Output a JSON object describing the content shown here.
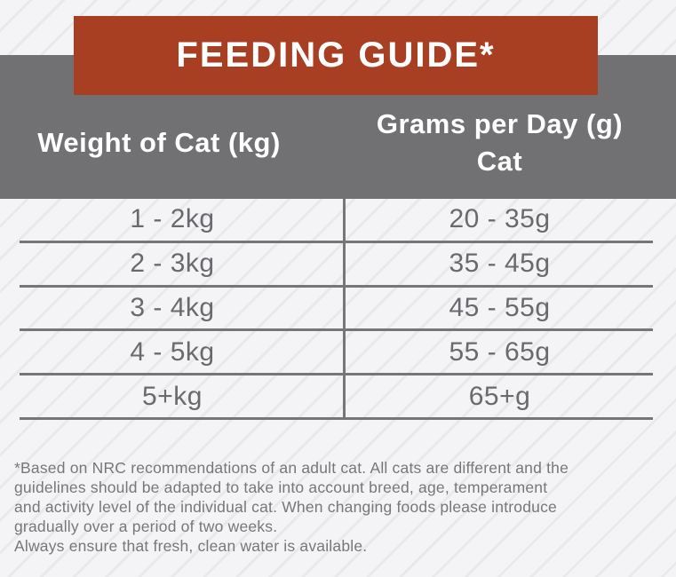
{
  "banner": {
    "title": "FEEDING GUIDE*"
  },
  "table": {
    "headers": {
      "col1": "Weight of Cat (kg)",
      "col2_line1": "Grams per Day (g)",
      "col2_line2": "Cat"
    },
    "rows": [
      {
        "weight": "1 - 2kg",
        "grams": "20 - 35g"
      },
      {
        "weight": "2 - 3kg",
        "grams": "35 - 45g"
      },
      {
        "weight": "3 - 4kg",
        "grams": "45 - 55g"
      },
      {
        "weight": "4 - 5kg",
        "grams": "55 - 65g"
      },
      {
        "weight": "5+kg",
        "grams": "65+g"
      }
    ]
  },
  "footnote": {
    "lines": [
      "*Based on NRC recommendations of an adult cat. All cats are different and the",
      "guidelines should be adapted to take into account breed, age, temperament",
      "and activity level of the individual cat. When changing foods please introduce",
      "gradually over a period of two weeks.",
      "Always ensure that fresh, clean water is available."
    ]
  },
  "colors": {
    "banner_red": "#a83e22",
    "header_gray": "#717174",
    "line_gray": "#76767a",
    "body_text": "#6a6a6e",
    "footnote_text": "#77777b",
    "background": "#f4f4f6",
    "stripe": "#e9e9ec",
    "white": "#ffffff"
  }
}
